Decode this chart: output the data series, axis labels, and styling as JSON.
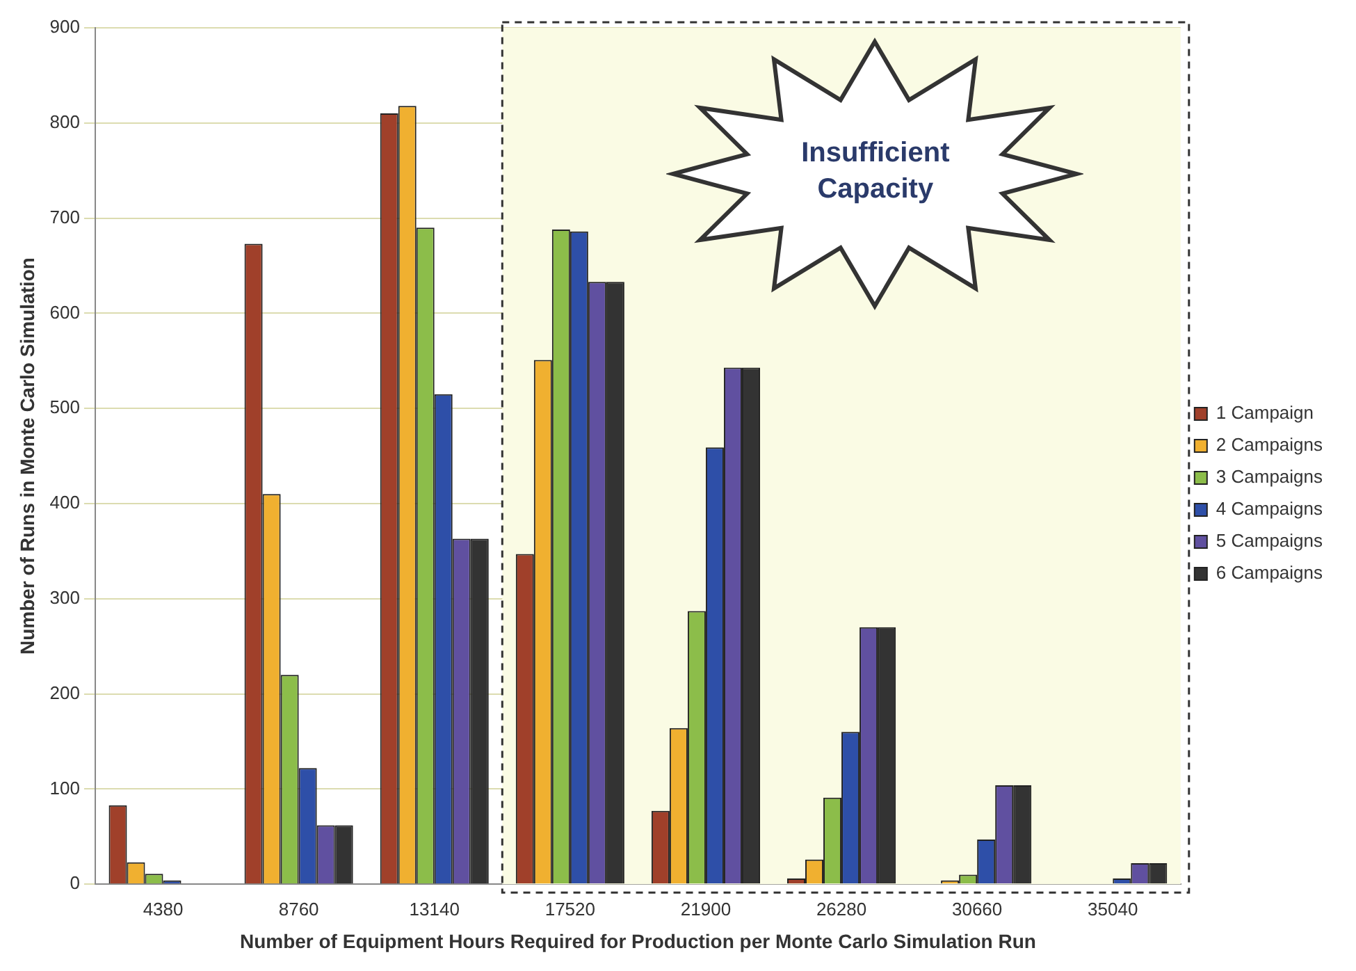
{
  "chart_data": {
    "type": "bar",
    "xlabel": "Number of Equipment Hours Required for Production per Monte Carlo Simulation Run",
    "ylabel": "Number of Runs in Monte Carlo Simulation",
    "categories": [
      "4380",
      "8760",
      "13140",
      "17520",
      "21900",
      "26280",
      "30660",
      "35040"
    ],
    "series": [
      {
        "name": "1 Campaign",
        "color": "#a0402a",
        "values": [
          83,
          673,
          810,
          347,
          77,
          6,
          0,
          0
        ]
      },
      {
        "name": "2 Campaigns",
        "color": "#f0b030",
        "values": [
          23,
          410,
          818,
          551,
          164,
          26,
          4,
          0
        ]
      },
      {
        "name": "3 Campaigns",
        "color": "#8cbd4a",
        "values": [
          11,
          220,
          690,
          688,
          287,
          91,
          10,
          0
        ]
      },
      {
        "name": "4 Campaigns",
        "color": "#2e4fa8",
        "values": [
          4,
          122,
          515,
          686,
          459,
          160,
          47,
          6
        ]
      },
      {
        "name": "5 Campaigns",
        "color": "#6050a0",
        "values": [
          0,
          62,
          363,
          633,
          543,
          270,
          104,
          22
        ]
      },
      {
        "name": "6 Campaigns",
        "color": "#333333",
        "values": [
          0,
          62,
          363,
          633,
          543,
          270,
          104,
          22
        ]
      }
    ],
    "ylim": [
      0,
      900
    ],
    "yticks": [
      0,
      100,
      200,
      300,
      400,
      500,
      600,
      700,
      800,
      900
    ],
    "grid": "y",
    "legend": "right",
    "bands": [
      {
        "axis": "x",
        "from": "17520",
        "to": "35040",
        "label": "Insufficient Capacity",
        "color": "#fafbe4"
      }
    ]
  }
}
